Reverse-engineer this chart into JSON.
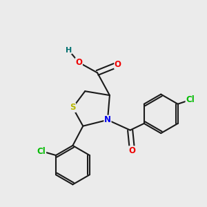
{
  "bg_color": "#ebebeb",
  "bond_color": "#1a1a1a",
  "bond_width": 1.5,
  "atom_colors": {
    "S": "#b8b800",
    "N": "#0000ee",
    "O": "#ee0000",
    "Cl": "#00bb00",
    "H": "#007070",
    "C": "#1a1a1a"
  },
  "font_size": 8.5,
  "figsize": [
    3.0,
    3.0
  ],
  "dpi": 100
}
